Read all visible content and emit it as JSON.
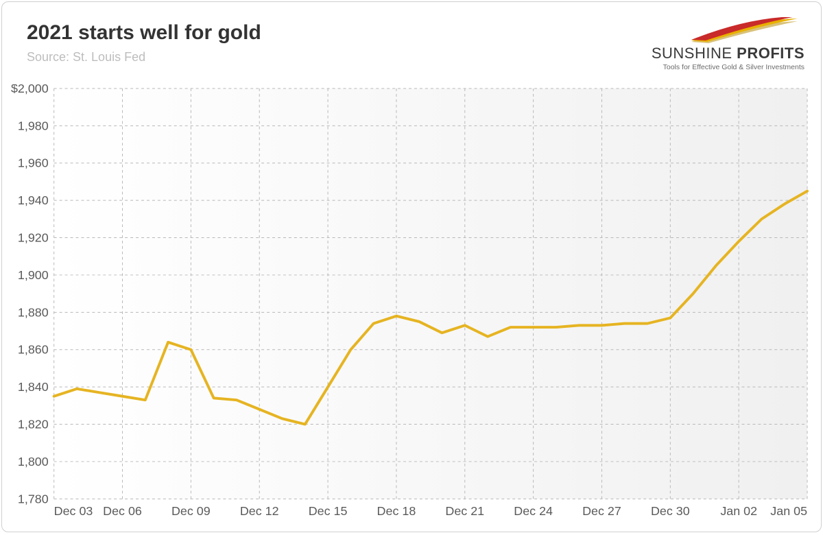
{
  "title": "2021 starts well for gold",
  "subtitle": "Source: St. Louis Fed",
  "logo": {
    "name_part1": "SUNSHINE",
    "name_part2": "PROFITS",
    "tagline": "Tools for Effective Gold & Silver Investments",
    "swoosh_colors": [
      "#c92a2a",
      "#e8b100",
      "#d9c27a"
    ]
  },
  "chart": {
    "type": "line",
    "background_gradient_from": "#ffffff",
    "background_gradient_to": "#f0f0f0",
    "grid_color": "#b8b8b8",
    "grid_dash": "4 4",
    "axis_label_color": "#5a5a5a",
    "axis_label_fontsize": 18,
    "line_color": "#e6b422",
    "line_width": 4,
    "y": {
      "min": 1780,
      "max": 2000,
      "tick_step": 20,
      "tick_format_prefix": "$",
      "ticks": [
        {
          "v": 2000,
          "label": "$2,000"
        },
        {
          "v": 1980,
          "label": "1,980"
        },
        {
          "v": 1960,
          "label": "1,960"
        },
        {
          "v": 1940,
          "label": "1,940"
        },
        {
          "v": 1920,
          "label": "1,920"
        },
        {
          "v": 1900,
          "label": "1,900"
        },
        {
          "v": 1880,
          "label": "1,880"
        },
        {
          "v": 1860,
          "label": "1,860"
        },
        {
          "v": 1840,
          "label": "1,840"
        },
        {
          "v": 1820,
          "label": "1,820"
        },
        {
          "v": 1800,
          "label": "1,800"
        },
        {
          "v": 1780,
          "label": "1,780"
        }
      ]
    },
    "x": {
      "min": 0,
      "max": 33,
      "ticks": [
        {
          "v": 0,
          "label": "Dec 03"
        },
        {
          "v": 3,
          "label": "Dec 06"
        },
        {
          "v": 6,
          "label": "Dec 09"
        },
        {
          "v": 9,
          "label": "Dec 12"
        },
        {
          "v": 12,
          "label": "Dec 15"
        },
        {
          "v": 15,
          "label": "Dec 18"
        },
        {
          "v": 18,
          "label": "Dec 21"
        },
        {
          "v": 21,
          "label": "Dec 24"
        },
        {
          "v": 24,
          "label": "Dec 27"
        },
        {
          "v": 27,
          "label": "Dec 30"
        },
        {
          "v": 30,
          "label": "Jan 02"
        },
        {
          "v": 33,
          "label": "Jan 05"
        }
      ]
    },
    "series": [
      {
        "name": "gold_price",
        "points": [
          {
            "x": 0,
            "y": 1835
          },
          {
            "x": 1,
            "y": 1839
          },
          {
            "x": 2,
            "y": 1837
          },
          {
            "x": 3,
            "y": 1835
          },
          {
            "x": 4,
            "y": 1833
          },
          {
            "x": 5,
            "y": 1864
          },
          {
            "x": 6,
            "y": 1860
          },
          {
            "x": 7,
            "y": 1834
          },
          {
            "x": 8,
            "y": 1833
          },
          {
            "x": 9,
            "y": 1828
          },
          {
            "x": 10,
            "y": 1823
          },
          {
            "x": 11,
            "y": 1820
          },
          {
            "x": 12,
            "y": 1840
          },
          {
            "x": 13,
            "y": 1860
          },
          {
            "x": 14,
            "y": 1874
          },
          {
            "x": 15,
            "y": 1878
          },
          {
            "x": 16,
            "y": 1875
          },
          {
            "x": 17,
            "y": 1869
          },
          {
            "x": 18,
            "y": 1873
          },
          {
            "x": 19,
            "y": 1867
          },
          {
            "x": 20,
            "y": 1872
          },
          {
            "x": 21,
            "y": 1872
          },
          {
            "x": 22,
            "y": 1872
          },
          {
            "x": 23,
            "y": 1873
          },
          {
            "x": 24,
            "y": 1873
          },
          {
            "x": 25,
            "y": 1874
          },
          {
            "x": 26,
            "y": 1874
          },
          {
            "x": 27,
            "y": 1877
          },
          {
            "x": 28,
            "y": 1890
          },
          {
            "x": 29,
            "y": 1905
          },
          {
            "x": 30,
            "y": 1918
          },
          {
            "x": 31,
            "y": 1930
          },
          {
            "x": 32,
            "y": 1938
          },
          {
            "x": 33,
            "y": 1945
          }
        ]
      }
    ]
  }
}
